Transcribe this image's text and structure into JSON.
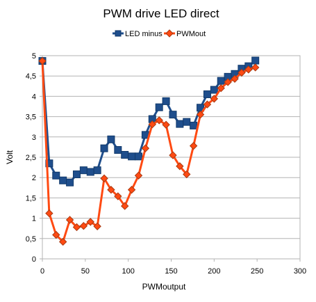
{
  "chart_data": {
    "type": "line",
    "title": "PWM drive LED direct",
    "xlabel": "PWMoutput",
    "ylabel": "Volt",
    "xlim": [
      0,
      300
    ],
    "ylim": [
      0,
      5
    ],
    "xticks": [
      0,
      50,
      100,
      150,
      200,
      250,
      300
    ],
    "yticks": [
      0,
      0.5,
      1,
      1.5,
      2,
      2.5,
      3,
      3.5,
      4,
      4.5,
      5
    ],
    "ytick_labels": [
      "0",
      "0,5",
      "1",
      "1,5",
      "2",
      "2,5",
      "3",
      "3,5",
      "4",
      "4,5",
      "5"
    ],
    "legend_position": "top-center",
    "grid": "horizontal",
    "series": [
      {
        "name": "LED minus",
        "color": "#1f4e8c",
        "marker": "square",
        "points": [
          [
            0,
            4.87
          ],
          [
            8,
            2.35
          ],
          [
            16,
            2.05
          ],
          [
            24,
            1.93
          ],
          [
            32,
            1.88
          ],
          [
            40,
            2.08
          ],
          [
            48,
            2.18
          ],
          [
            56,
            2.14
          ],
          [
            64,
            2.18
          ],
          [
            72,
            2.72
          ],
          [
            80,
            2.94
          ],
          [
            88,
            2.68
          ],
          [
            96,
            2.56
          ],
          [
            104,
            2.52
          ],
          [
            112,
            2.52
          ],
          [
            120,
            3.05
          ],
          [
            128,
            3.44
          ],
          [
            136,
            3.73
          ],
          [
            144,
            3.88
          ],
          [
            152,
            3.55
          ],
          [
            160,
            3.32
          ],
          [
            168,
            3.37
          ],
          [
            176,
            3.28
          ],
          [
            184,
            3.72
          ],
          [
            192,
            4.05
          ],
          [
            200,
            4.16
          ],
          [
            208,
            4.38
          ],
          [
            216,
            4.48
          ],
          [
            224,
            4.55
          ],
          [
            232,
            4.68
          ],
          [
            240,
            4.74
          ],
          [
            248,
            4.88
          ]
        ]
      },
      {
        "name": "PWMout",
        "color": "#ff4a12",
        "marker": "diamond",
        "points": [
          [
            0,
            4.87
          ],
          [
            8,
            1.12
          ],
          [
            16,
            0.59
          ],
          [
            24,
            0.42
          ],
          [
            32,
            0.96
          ],
          [
            40,
            0.78
          ],
          [
            48,
            0.81
          ],
          [
            56,
            0.91
          ],
          [
            64,
            0.8
          ],
          [
            72,
            1.98
          ],
          [
            80,
            1.7
          ],
          [
            88,
            1.54
          ],
          [
            96,
            1.3
          ],
          [
            104,
            1.7
          ],
          [
            112,
            2.05
          ],
          [
            120,
            2.72
          ],
          [
            128,
            3.31
          ],
          [
            136,
            3.41
          ],
          [
            144,
            3.3
          ],
          [
            152,
            2.55
          ],
          [
            160,
            2.28
          ],
          [
            168,
            2.08
          ],
          [
            176,
            2.78
          ],
          [
            184,
            3.55
          ],
          [
            192,
            3.8
          ],
          [
            200,
            3.94
          ],
          [
            208,
            4.2
          ],
          [
            216,
            4.35
          ],
          [
            224,
            4.43
          ],
          [
            232,
            4.58
          ],
          [
            240,
            4.66
          ],
          [
            248,
            4.71
          ]
        ]
      }
    ]
  }
}
